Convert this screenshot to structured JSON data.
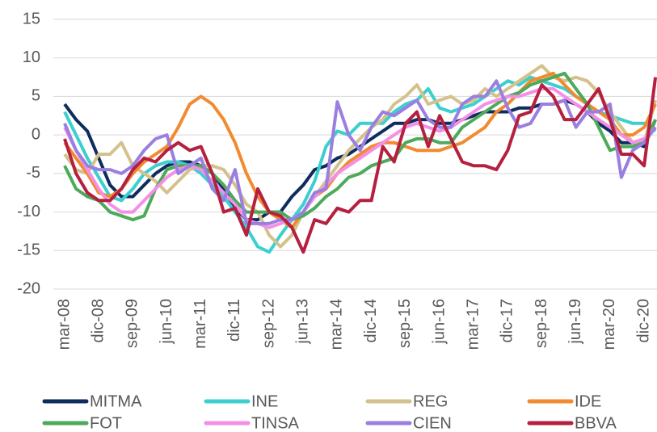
{
  "chart_data": {
    "type": "line",
    "categories": [
      "mar-08",
      null,
      null,
      "dic-08",
      null,
      null,
      "sep-09",
      null,
      null,
      "jun-10",
      null,
      null,
      "mar-11",
      null,
      null,
      "dic-11",
      null,
      null,
      "sep-12",
      null,
      null,
      "jun-13",
      null,
      null,
      "mar-14",
      null,
      null,
      "dic-14",
      null,
      null,
      "sep-15",
      null,
      null,
      "jun-16",
      null,
      null,
      "mar-17",
      null,
      null,
      "dic-17",
      null,
      null,
      "sep-18",
      null,
      null,
      "jun-19",
      null,
      null,
      "mar-20",
      null,
      null,
      "dic-20",
      null
    ],
    "ylim": [
      -20,
      15
    ],
    "yticks": [
      -20,
      -15,
      -10,
      -5,
      0,
      5,
      10,
      15
    ],
    "grid": true,
    "series": [
      {
        "name": "MITMA",
        "color": "#0e2c5e",
        "values": [
          4,
          2,
          0.5,
          -3,
          -6.5,
          -8,
          -8,
          -6.5,
          -5,
          -4,
          -3.5,
          -3.5,
          -4,
          -5,
          -7,
          -9.5,
          -11,
          -11,
          -10,
          -10,
          -8,
          -6.5,
          -4.5,
          -4,
          -3,
          -2.5,
          -1.5,
          -0.5,
          0.5,
          1.5,
          1.5,
          2,
          2,
          1.5,
          1.5,
          2,
          2.5,
          3,
          3,
          3,
          3.5,
          3.5,
          4,
          4,
          4.5,
          4,
          3,
          1.5,
          0.5,
          -1,
          -1,
          -1.5,
          2
        ]
      },
      {
        "name": "INE",
        "color": "#3ccfcf",
        "values": [
          3,
          0,
          -3,
          -5.5,
          -8,
          -8.5,
          -7,
          -5,
          -4,
          -3.5,
          -3.5,
          -4,
          -5,
          -6.5,
          -8,
          -10,
          -12,
          -14.5,
          -15.2,
          -13,
          -11,
          -9,
          -6,
          -1.5,
          0.5,
          0,
          1.5,
          1.5,
          1.5,
          3,
          4,
          4.5,
          6,
          3.5,
          3,
          3.5,
          4,
          5,
          6,
          7,
          6.5,
          7.5,
          7,
          6.5,
          6,
          5,
          4,
          3,
          2.5,
          2,
          1.5,
          1.5,
          0.5
        ]
      },
      {
        "name": "REG",
        "color": "#d4c18c",
        "values": [
          -2.5,
          -4.5,
          -5,
          -2.5,
          -2.5,
          -1,
          -4,
          -5,
          -6,
          -7.5,
          -6,
          -4.5,
          -4,
          -4,
          -4.5,
          -6.5,
          -9,
          -10,
          -13,
          -14.5,
          -13,
          -10,
          -8,
          -6,
          -4,
          -2,
          -0.5,
          1,
          2,
          4,
          5,
          6.5,
          4,
          4.5,
          5,
          4,
          4.5,
          6,
          5,
          6,
          7,
          8,
          9,
          7.5,
          7,
          7.5,
          7,
          5.5,
          3,
          1,
          -1,
          -1,
          4.5
        ]
      },
      {
        "name": "IDE",
        "color": "#f28a30",
        "values": [
          -1,
          -3,
          -5,
          -7.5,
          -8,
          -7,
          -5,
          -3.5,
          -2.5,
          -1.5,
          1,
          4,
          5,
          4,
          2,
          -1,
          -5,
          -8,
          -10,
          -11,
          -12,
          -10,
          -8,
          -7,
          -5,
          -3.5,
          -2.5,
          -1.5,
          -1,
          -1,
          -1.5,
          -2,
          -2,
          -2,
          -1.5,
          -1,
          0,
          1,
          3,
          4,
          5.5,
          7,
          7.5,
          8,
          6.5,
          5,
          4,
          3,
          2,
          0,
          0,
          1,
          4
        ]
      },
      {
        "name": "FOT",
        "color": "#4caa5a",
        "values": [
          -4,
          -7,
          -8,
          -8.5,
          -10,
          -10.5,
          -11,
          -10.5,
          -7,
          -4.5,
          -4,
          -4,
          -4,
          -5,
          -6.5,
          -8.5,
          -10,
          -10,
          -10,
          -10,
          -11,
          -10.5,
          -9.5,
          -8,
          -7,
          -5.5,
          -5,
          -4,
          -3.5,
          -3,
          -1,
          -0.5,
          -0.5,
          -1,
          -1,
          1,
          2,
          3,
          4,
          5,
          5.5,
          6.5,
          7,
          7.5,
          8,
          6,
          4,
          1,
          -2,
          -1.5,
          -1.5,
          -1,
          2
        ]
      },
      {
        "name": "TINSA",
        "color": "#f48fe8",
        "values": [
          1,
          -2,
          -4.5,
          -7,
          -9,
          -10,
          -10,
          -8.5,
          -7,
          -5.5,
          -4.5,
          -4,
          -4.5,
          -6,
          -7.5,
          -9,
          -11,
          -11.5,
          -12,
          -11.5,
          -11,
          -10,
          -8,
          -6.5,
          -5,
          -4,
          -3,
          -2,
          -1,
          0,
          1,
          1.5,
          1,
          0.5,
          1,
          2,
          3,
          4,
          4.5,
          5,
          5,
          5.5,
          6,
          6,
          5,
          4,
          3,
          2,
          1,
          0,
          -1,
          -0.5,
          1
        ]
      },
      {
        "name": "CIEN",
        "color": "#9b7fe0",
        "values": [
          1.5,
          -2,
          -4,
          -4.5,
          -4.5,
          -5,
          -4,
          -2,
          -0.5,
          0,
          -5,
          -4,
          -3,
          -7,
          -8.5,
          -4.5,
          -11.5,
          -11.5,
          -11.5,
          -11,
          -11,
          -10,
          -7.5,
          -7,
          4.3,
          0,
          -2,
          1,
          3,
          2.5,
          3.5,
          4.5,
          2,
          1,
          1,
          4,
          5,
          5,
          7,
          3.5,
          1,
          1.5,
          4,
          4,
          4.5,
          1,
          3,
          3,
          4,
          -5.5,
          -2,
          -1,
          1
        ]
      },
      {
        "name": "BBVA",
        "color": "#b5203f",
        "values": [
          -0.5,
          -5,
          -7.5,
          -8.5,
          -8.5,
          -7,
          -4.5,
          -3,
          -3.5,
          -2,
          -1,
          -2,
          -1.5,
          -5,
          -10,
          -9.5,
          -13,
          -7,
          -10,
          -10.5,
          -12,
          -15.2,
          -11,
          -11.5,
          -9.5,
          -10,
          -8.5,
          -8.5,
          -1.5,
          -3.5,
          1.5,
          3,
          -1.5,
          2.5,
          -0.5,
          -3.5,
          -4,
          -4,
          -4.5,
          -2,
          2.5,
          3,
          6.5,
          5,
          2,
          2,
          4,
          6,
          2,
          -2.5,
          -2.5,
          -4,
          7.5
        ]
      }
    ]
  }
}
